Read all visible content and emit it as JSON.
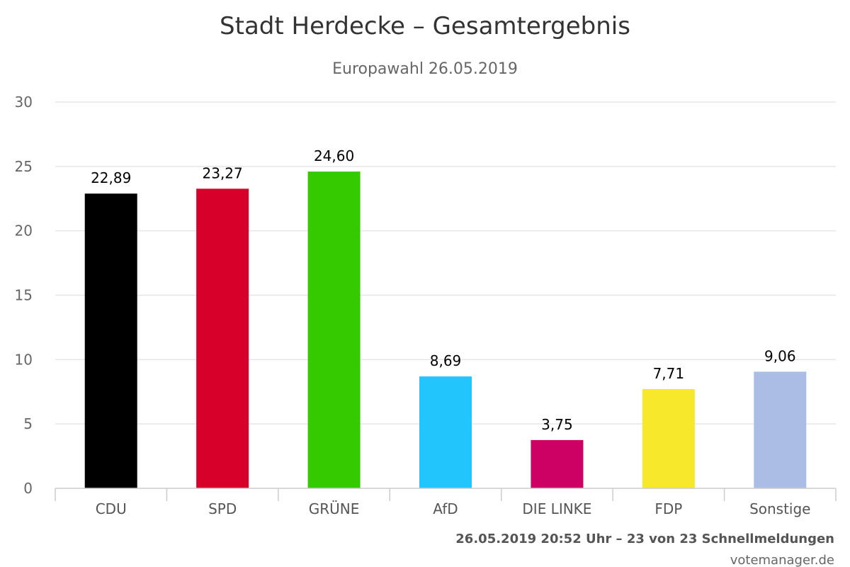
{
  "chart_data": {
    "type": "bar",
    "title": "Stadt Herdecke – Gesamtergebnis",
    "subtitle": "Europawahl 26.05.2019",
    "categories": [
      "CDU",
      "SPD",
      "GRÜNE",
      "AfD",
      "DIE LINKE",
      "FDP",
      "Sonstige"
    ],
    "values": [
      22.89,
      23.27,
      24.6,
      8.69,
      3.75,
      7.71,
      9.06
    ],
    "value_labels": [
      "22,89",
      "23,27",
      "24,60",
      "8,69",
      "3,75",
      "7,71",
      "9,06"
    ],
    "colors": [
      "#000000",
      "#d7002a",
      "#35c900",
      "#23c5fd",
      "#cd0063",
      "#f8e82c",
      "#abbde4"
    ],
    "ylim": [
      0,
      30
    ],
    "yticks": [
      0,
      5,
      10,
      15,
      20,
      25,
      30
    ],
    "xlabel": "",
    "ylabel": "",
    "grid": true,
    "legend": "none"
  },
  "footer": {
    "timestamp": "26.05.2019 20:52 Uhr – 23 von 23 Schnellmeldungen",
    "credit": "votemanager.de"
  }
}
